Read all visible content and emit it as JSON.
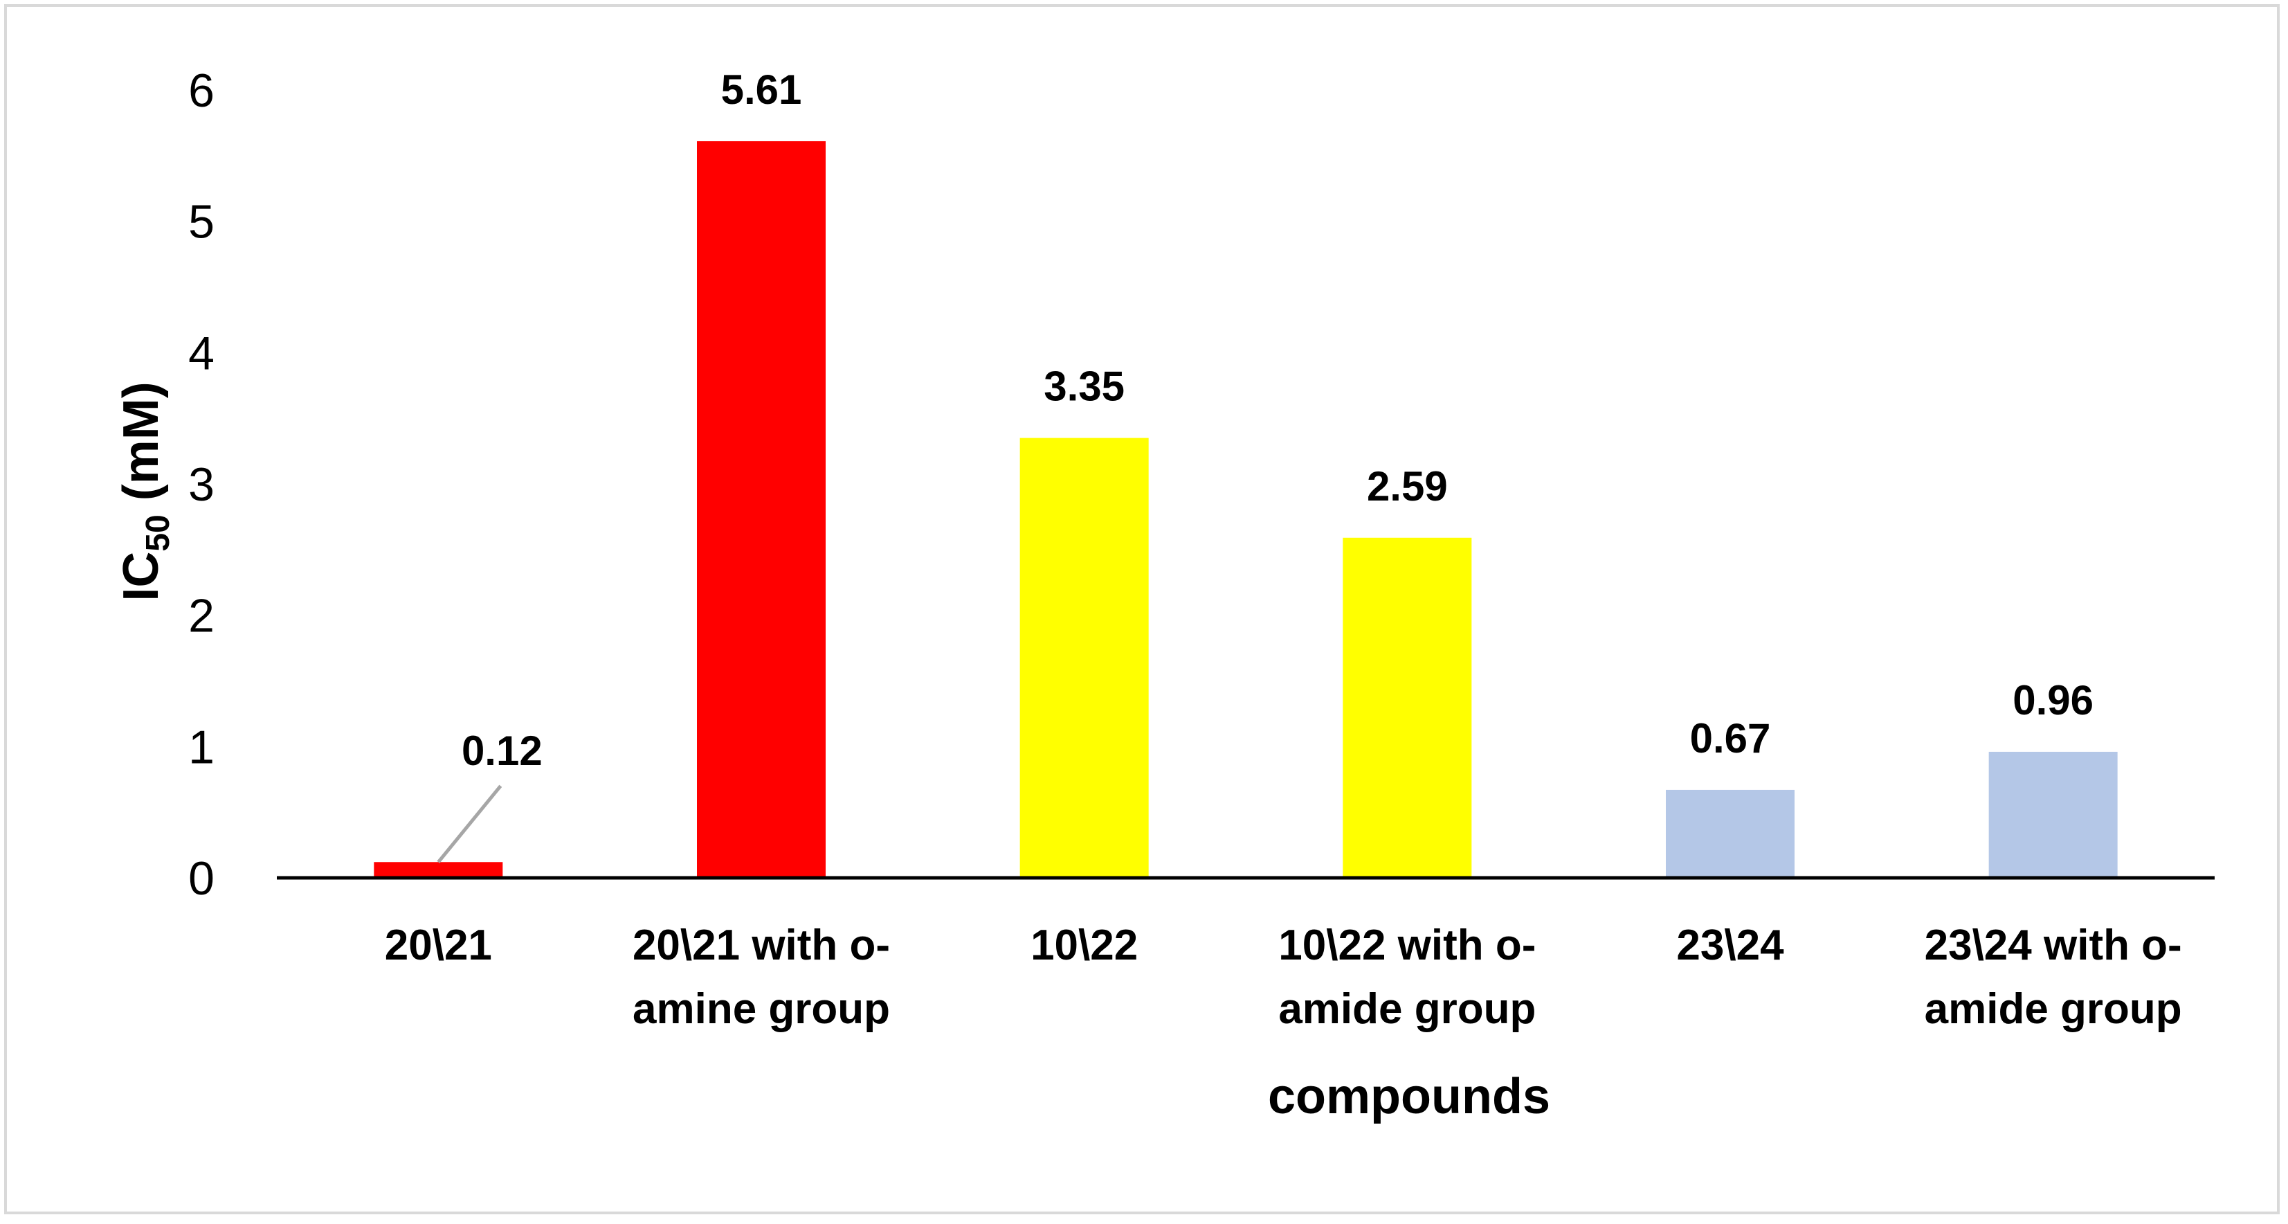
{
  "chart_data": {
    "type": "bar",
    "categories": [
      [
        "20\\21"
      ],
      [
        "20\\21 with o-",
        "amine group"
      ],
      [
        "10\\22"
      ],
      [
        "10\\22 with o-",
        "amide group"
      ],
      [
        "23\\24"
      ],
      [
        "23\\24 with o-",
        "amide group"
      ]
    ],
    "values": [
      0.12,
      5.61,
      3.35,
      2.59,
      0.67,
      0.96
    ],
    "data_labels": [
      "0.12",
      "5.61",
      "3.35",
      "2.59",
      "0.67",
      "0.96"
    ],
    "colors": [
      "#ff0000",
      "#ff0000",
      "#ffff00",
      "#ffff00",
      "#b4c7e7",
      "#b4c7e7"
    ],
    "leader_line_color": "#a6a6a6",
    "xlabel": "compounds",
    "ylabel": {
      "main": "IC",
      "subscript": "50",
      "unit": " (mM)"
    },
    "ylim": [
      0,
      6
    ],
    "yticks": [
      "0",
      "1",
      "2",
      "3",
      "4",
      "5",
      "6"
    ],
    "grid": false,
    "legend": "none"
  }
}
